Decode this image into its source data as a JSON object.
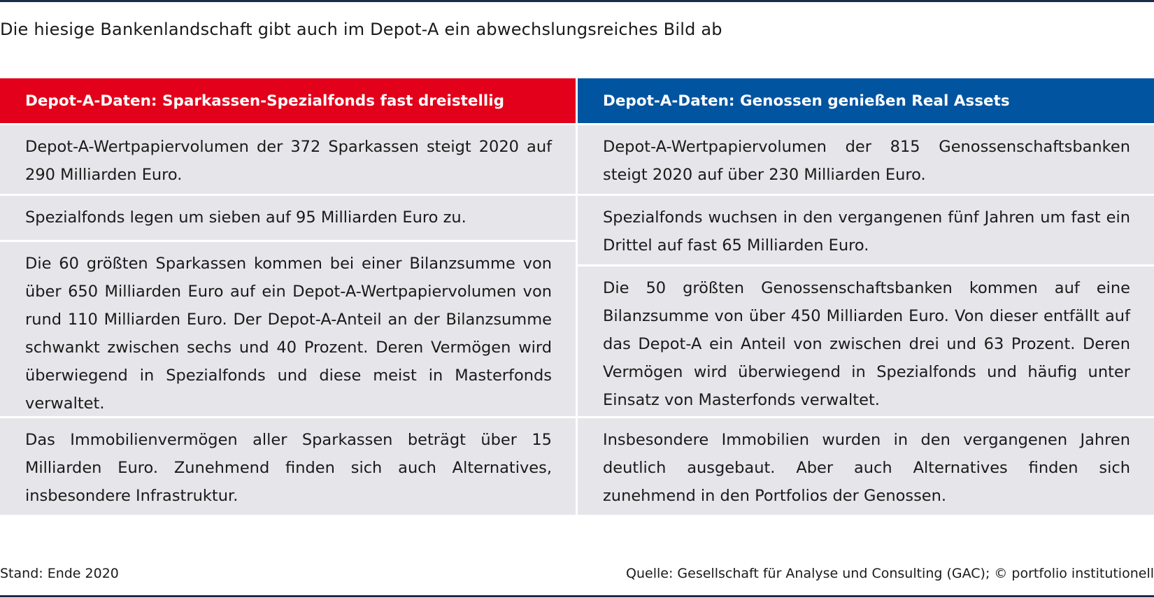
{
  "title": "Die hiesige Bankenlandschaft gibt auch im Depot-A ein abwechslungsreiches Bild ab",
  "colors": {
    "left_header": "#e2001a",
    "right_header": "#0054a0",
    "cell_background": "#e6e6ea",
    "rule": "#1c2b4a"
  },
  "left": {
    "header": "Depot-A-Daten: Sparkassen-Spezialfonds fast dreistellig",
    "cells": [
      "Depot-A-Wertpapiervolumen der 372 Sparkassen steigt 2020 auf 290 Milliarden Euro.",
      "Spezialfonds legen um sieben auf 95 Milliarden Euro zu.",
      "Die 60 größten Sparkassen kommen bei einer Bilanzsumme von über 650 Milliarden Euro auf ein Depot-A-Wertpapier­volumen von rund 110 Milliarden Euro. Der Depot-A-Anteil an der Bilanzsumme schwankt zwischen sechs und 40 Prozent. Deren Vermögen wird überwiegend in Spezialfonds und diese meist in Masterfonds verwaltet.",
      "Das Immobilienvermögen aller Sparkassen beträgt über 15 Milliarden Euro. Zunehmend finden sich auch Alternatives, insbesondere Infrastruktur."
    ]
  },
  "right": {
    "header": "Depot-A-Daten: Genossen genießen Real Assets",
    "cells": [
      "Depot-A-Wertpapiervolumen der 815 Genossenschaftsbanken steigt 2020 auf über 230 Milliarden Euro.",
      "Spezialfonds wuchsen in den vergangenen fünf Jahren um fast ein Drittel auf fast 65 Milliarden Euro.",
      "Die 50 größten Genossenschaftsbanken kommen auf eine Bi­lanzsumme von über 450 Milliarden Euro. Von dieser entfällt auf das Depot-A ein Anteil von zwischen drei und 63 Prozent. Deren Vermögen wird überwiegend in Spezialfonds und häufig unter Einsatz von Masterfonds verwaltet.",
      "Insbesondere Immobilien wurden in den vergangenen Jahren deutlich ausgebaut. Aber auch Alternatives finden sich zuneh­mend in den Portfolios der Genossen."
    ]
  },
  "footer": {
    "stand": "Stand: Ende 2020",
    "source": "Quelle: Gesellschaft für Analyse und Consulting (GAC); © portfolio institutionell"
  }
}
